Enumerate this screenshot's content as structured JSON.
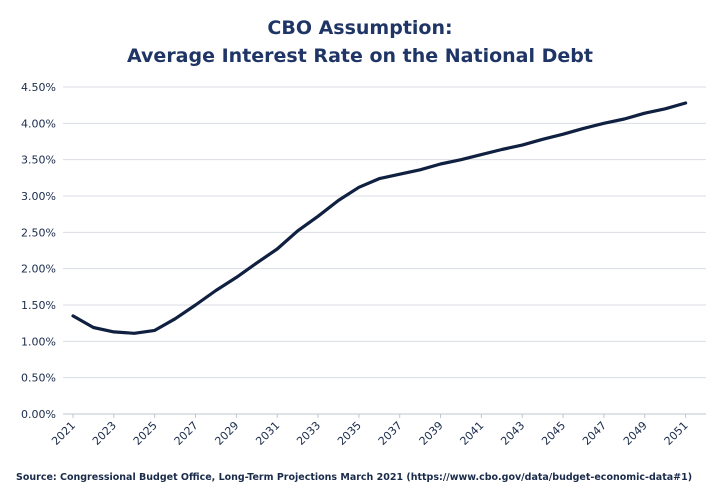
{
  "chart_data": {
    "type": "line",
    "title": "CBO Assumption:",
    "subtitle": "Average Interest Rate on the National Debt",
    "xlabel": "",
    "ylabel": "",
    "ylim": [
      0,
      4.5
    ],
    "xlim": [
      2021,
      2052
    ],
    "yticks": [
      "0.00%",
      "0.50%",
      "1.00%",
      "1.50%",
      "2.00%",
      "2.50%",
      "3.00%",
      "3.50%",
      "4.00%",
      "4.50%"
    ],
    "xticks": [
      "2021",
      "2023",
      "2025",
      "2027",
      "2029",
      "2031",
      "2033",
      "2035",
      "2037",
      "2039",
      "2041",
      "2043",
      "2045",
      "2047",
      "2049",
      "2051"
    ],
    "grid": true,
    "line_color": "#0f2040",
    "series": [
      {
        "x": [
          2021,
          2022,
          2023,
          2024,
          2025,
          2026,
          2027,
          2028,
          2029,
          2030,
          2031,
          2032,
          2033,
          2034,
          2035,
          2036,
          2037,
          2038,
          2039,
          2040,
          2041,
          2042,
          2043,
          2044,
          2045,
          2046,
          2047,
          2048,
          2049,
          2050,
          2051
        ],
        "values": [
          1.35,
          1.19,
          1.13,
          1.11,
          1.15,
          1.31,
          1.5,
          1.7,
          1.88,
          2.08,
          2.27,
          2.52,
          2.72,
          2.94,
          3.12,
          3.24,
          3.3,
          3.36,
          3.44,
          3.5,
          3.57,
          3.64,
          3.7,
          3.78,
          3.85,
          3.93,
          4.0,
          4.06,
          4.14,
          4.2,
          4.28
        ]
      }
    ]
  },
  "source": "Source: Congressional Budget Office, Long-Term Projections March 2021 (https://www.cbo.gov/data/budget-economic-data#1)"
}
